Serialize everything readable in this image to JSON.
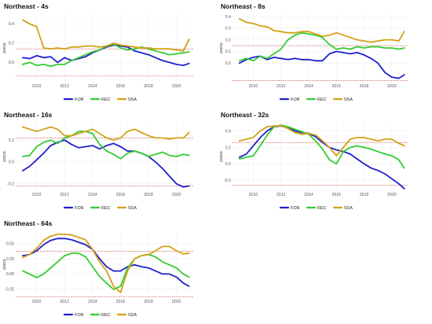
{
  "chart_data": [
    {
      "type": "line",
      "title": "Northeast - 4s",
      "ylabel": "ρocca",
      "xlim": [
        2008.5,
        2021.2
      ],
      "ylim": [
        -0.2,
        0.5
      ],
      "xticks": [
        2010,
        2012,
        2014,
        2016,
        2018,
        2020
      ],
      "yticks": [
        0.0,
        0.2,
        0.4
      ],
      "ytick_labels": [
        "0.0",
        "0.2",
        "0.4"
      ],
      "ref_lines": [
        0.14,
        -0.14
      ],
      "legend_position": "bottom",
      "series": [
        {
          "name": "FOR",
          "color": "#1f1fcf",
          "x": [
            2009,
            2009.5,
            2010,
            2010.5,
            2011,
            2011.5,
            2012,
            2012.5,
            2013,
            2013.5,
            2014,
            2014.5,
            2015,
            2015.5,
            2016,
            2016.5,
            2017,
            2017.5,
            2018,
            2018.5,
            2019,
            2019.5,
            2020,
            2020.5,
            2020.9
          ],
          "values": [
            0.05,
            0.04,
            0.07,
            0.05,
            0.06,
            0.0,
            0.05,
            0.02,
            0.04,
            0.06,
            0.1,
            0.13,
            0.16,
            0.18,
            0.17,
            0.16,
            0.12,
            0.1,
            0.08,
            0.05,
            0.02,
            0.0,
            -0.02,
            -0.03,
            -0.01
          ]
        },
        {
          "name": "REC",
          "color": "#33cc33",
          "x": [
            2009,
            2009.5,
            2010,
            2010.5,
            2011,
            2011.5,
            2012,
            2012.5,
            2013,
            2013.5,
            2014,
            2014.5,
            2015,
            2015.5,
            2016,
            2016.5,
            2017,
            2017.5,
            2018,
            2018.5,
            2019,
            2019.5,
            2020,
            2020.5,
            2020.9
          ],
          "values": [
            -0.02,
            0.0,
            -0.03,
            -0.02,
            -0.04,
            -0.02,
            -0.02,
            0.02,
            0.05,
            0.08,
            0.11,
            0.13,
            0.17,
            0.19,
            0.15,
            0.13,
            0.14,
            0.16,
            0.14,
            0.12,
            0.1,
            0.08,
            0.09,
            0.1,
            0.11
          ]
        },
        {
          "name": "SSA",
          "color": "#d4a017",
          "x": [
            2009,
            2009.5,
            2010,
            2010.5,
            2011,
            2011.5,
            2012,
            2012.5,
            2013,
            2013.5,
            2014,
            2014.5,
            2015,
            2015.5,
            2016,
            2016.5,
            2017,
            2017.5,
            2018,
            2018.5,
            2019,
            2019.5,
            2020,
            2020.5,
            2020.9
          ],
          "values": [
            0.44,
            0.4,
            0.37,
            0.15,
            0.14,
            0.15,
            0.14,
            0.16,
            0.16,
            0.17,
            0.17,
            0.16,
            0.17,
            0.2,
            0.18,
            0.17,
            0.16,
            0.15,
            0.15,
            0.14,
            0.14,
            0.14,
            0.13,
            0.12,
            0.24
          ]
        }
      ]
    },
    {
      "type": "line",
      "title": "Northeast - 8s",
      "ylabel": "ρocca",
      "xlim": [
        2008.5,
        2021.2
      ],
      "ylim": [
        -0.16,
        0.42
      ],
      "xticks": [
        2010,
        2012,
        2014,
        2016,
        2018,
        2020
      ],
      "yticks": [
        0.0,
        0.1,
        0.2,
        0.3,
        0.4
      ],
      "ytick_labels": [
        "0.0",
        "0.1",
        "0.2",
        "0.3",
        "0.4"
      ],
      "ref_lines": [
        0.15,
        -0.15
      ],
      "legend_position": "bottom",
      "series": [
        {
          "name": "FOR",
          "color": "#1f1fcf",
          "x": [
            2009,
            2009.5,
            2010,
            2010.5,
            2011,
            2011.5,
            2012,
            2012.5,
            2013,
            2013.5,
            2014,
            2014.5,
            2015,
            2015.5,
            2016,
            2016.5,
            2017,
            2017.5,
            2018,
            2018.5,
            2019,
            2019.5,
            2020,
            2020.5,
            2020.9
          ],
          "values": [
            0.0,
            0.03,
            0.05,
            0.06,
            0.03,
            0.05,
            0.04,
            0.03,
            0.04,
            0.03,
            0.03,
            0.02,
            0.02,
            0.08,
            0.1,
            0.09,
            0.08,
            0.09,
            0.07,
            0.04,
            0.0,
            -0.08,
            -0.12,
            -0.13,
            -0.1
          ]
        },
        {
          "name": "REC",
          "color": "#33cc33",
          "x": [
            2009,
            2009.5,
            2010,
            2010.5,
            2011,
            2011.5,
            2012,
            2012.5,
            2013,
            2013.5,
            2014,
            2014.5,
            2015,
            2015.5,
            2016,
            2016.5,
            2017,
            2017.5,
            2018,
            2018.5,
            2019,
            2019.5,
            2020,
            2020.5,
            2020.9
          ],
          "values": [
            0.02,
            0.04,
            0.02,
            0.06,
            0.04,
            0.08,
            0.12,
            0.2,
            0.24,
            0.26,
            0.25,
            0.24,
            0.22,
            0.16,
            0.12,
            0.13,
            0.12,
            0.14,
            0.13,
            0.14,
            0.14,
            0.13,
            0.13,
            0.12,
            0.13
          ]
        },
        {
          "name": "SSA",
          "color": "#d4a017",
          "x": [
            2009,
            2009.5,
            2010,
            2010.5,
            2011,
            2011.5,
            2012,
            2012.5,
            2013,
            2013.5,
            2014,
            2014.5,
            2015,
            2015.5,
            2016,
            2016.5,
            2017,
            2017.5,
            2018,
            2018.5,
            2019,
            2019.5,
            2020,
            2020.5,
            2020.9
          ],
          "values": [
            0.38,
            0.35,
            0.34,
            0.32,
            0.31,
            0.28,
            0.27,
            0.26,
            0.26,
            0.27,
            0.27,
            0.25,
            0.23,
            0.24,
            0.26,
            0.24,
            0.22,
            0.2,
            0.19,
            0.18,
            0.19,
            0.2,
            0.2,
            0.19,
            0.27
          ]
        }
      ]
    },
    {
      "type": "line",
      "title": "Northeast - 16s",
      "ylabel": "ρocca",
      "xlim": [
        2008.5,
        2021.2
      ],
      "ylim": [
        -0.26,
        0.36
      ],
      "xticks": [
        2010,
        2012,
        2014,
        2016,
        2018,
        2020
      ],
      "yticks": [
        -0.2,
        0.0,
        0.2
      ],
      "ytick_labels": [
        "-0.2",
        "0.0",
        "0.2"
      ],
      "ref_lines": [
        0.22,
        -0.22
      ],
      "legend_position": "bottom",
      "series": [
        {
          "name": "FOR",
          "color": "#1f1fcf",
          "x": [
            2009,
            2009.5,
            2010,
            2010.5,
            2011,
            2011.5,
            2012,
            2012.5,
            2013,
            2013.5,
            2014,
            2014.5,
            2015,
            2015.5,
            2016,
            2016.5,
            2017,
            2017.5,
            2018,
            2018.5,
            2019,
            2019.5,
            2020,
            2020.5,
            2020.9
          ],
          "values": [
            -0.08,
            -0.04,
            0.02,
            0.08,
            0.15,
            0.18,
            0.2,
            0.16,
            0.13,
            0.14,
            0.15,
            0.12,
            0.15,
            0.17,
            0.14,
            0.1,
            0.1,
            0.08,
            0.05,
            0.0,
            -0.06,
            -0.13,
            -0.2,
            -0.23,
            -0.22
          ]
        },
        {
          "name": "REC",
          "color": "#33cc33",
          "x": [
            2009,
            2009.5,
            2010,
            2010.5,
            2011,
            2011.5,
            2012,
            2012.5,
            2013,
            2013.5,
            2014,
            2014.5,
            2015,
            2015.5,
            2016,
            2016.5,
            2017,
            2017.5,
            2018,
            2018.5,
            2019,
            2019.5,
            2020,
            2020.5,
            2020.9
          ],
          "values": [
            0.05,
            0.06,
            0.14,
            0.18,
            0.2,
            0.17,
            0.22,
            0.24,
            0.28,
            0.28,
            0.26,
            0.16,
            0.1,
            0.07,
            0.03,
            0.08,
            0.1,
            0.08,
            0.05,
            0.07,
            0.09,
            0.06,
            0.05,
            0.07,
            0.06
          ]
        },
        {
          "name": "SSA",
          "color": "#d4a017",
          "x": [
            2009,
            2009.5,
            2010,
            2010.5,
            2011,
            2011.5,
            2012,
            2012.5,
            2013,
            2013.5,
            2014,
            2014.5,
            2015,
            2015.5,
            2016,
            2016.5,
            2017,
            2017.5,
            2018,
            2018.5,
            2019,
            2019.5,
            2020,
            2020.5,
            2020.9
          ],
          "values": [
            0.32,
            0.3,
            0.28,
            0.3,
            0.32,
            0.3,
            0.24,
            0.24,
            0.26,
            0.28,
            0.3,
            0.26,
            0.22,
            0.2,
            0.22,
            0.28,
            0.3,
            0.27,
            0.24,
            0.22,
            0.22,
            0.21,
            0.22,
            0.22,
            0.27
          ]
        }
      ]
    },
    {
      "type": "line",
      "title": "Northeast - 32s",
      "ylabel": "ρocca",
      "xlim": [
        2008.5,
        2021.2
      ],
      "ylim": [
        -0.32,
        0.5
      ],
      "xticks": [
        2010,
        2012,
        2014,
        2016,
        2018,
        2020
      ],
      "yticks": [
        -0.2,
        0.0,
        0.2,
        0.4
      ],
      "ytick_labels": [
        "-0.2",
        "0.0",
        "0.2",
        "0.4"
      ],
      "ref_lines": [
        0.26,
        -0.26
      ],
      "legend_position": "bottom",
      "series": [
        {
          "name": "FOR",
          "color": "#1f1fcf",
          "x": [
            2009,
            2009.5,
            2010,
            2010.5,
            2011,
            2011.5,
            2012,
            2012.5,
            2013,
            2013.5,
            2014,
            2014.5,
            2015,
            2015.5,
            2016,
            2016.5,
            2017,
            2017.5,
            2018,
            2018.5,
            2019,
            2019.5,
            2020,
            2020.5,
            2020.9
          ],
          "values": [
            0.08,
            0.12,
            0.22,
            0.32,
            0.4,
            0.45,
            0.46,
            0.44,
            0.4,
            0.38,
            0.37,
            0.33,
            0.26,
            0.2,
            0.17,
            0.15,
            0.12,
            0.06,
            0.0,
            -0.05,
            -0.08,
            -0.12,
            -0.18,
            -0.24,
            -0.3
          ]
        },
        {
          "name": "REC",
          "color": "#33cc33",
          "x": [
            2009,
            2009.5,
            2010,
            2010.5,
            2011,
            2011.5,
            2012,
            2012.5,
            2013,
            2013.5,
            2014,
            2014.5,
            2015,
            2015.5,
            2016,
            2016.5,
            2017,
            2017.5,
            2018,
            2018.5,
            2019,
            2019.5,
            2020,
            2020.5,
            2020.9
          ],
          "values": [
            0.06,
            0.08,
            0.1,
            0.22,
            0.35,
            0.45,
            0.47,
            0.45,
            0.42,
            0.39,
            0.36,
            0.28,
            0.18,
            0.05,
            0.0,
            0.15,
            0.2,
            0.22,
            0.2,
            0.18,
            0.15,
            0.12,
            0.1,
            0.05,
            -0.05
          ]
        },
        {
          "name": "SSA",
          "color": "#d4a017",
          "x": [
            2009,
            2009.5,
            2010,
            2010.5,
            2011,
            2011.5,
            2012,
            2012.5,
            2013,
            2013.5,
            2014,
            2014.5,
            2015,
            2015.5,
            2016,
            2016.5,
            2017,
            2017.5,
            2018,
            2018.5,
            2019,
            2019.5,
            2020,
            2020.5,
            2020.9
          ],
          "values": [
            0.28,
            0.3,
            0.32,
            0.4,
            0.45,
            0.46,
            0.46,
            0.43,
            0.38,
            0.36,
            0.37,
            0.35,
            0.28,
            0.2,
            0.1,
            0.2,
            0.3,
            0.32,
            0.32,
            0.3,
            0.28,
            0.3,
            0.3,
            0.25,
            0.22
          ]
        }
      ]
    },
    {
      "type": "line",
      "title": "Northeast - 64s",
      "ylabel": "ρocca",
      "xlim": [
        2008.5,
        2021.2
      ],
      "ylim": [
        -0.38,
        0.7
      ],
      "xticks": [
        2010,
        2012,
        2014,
        2016,
        2018,
        2020
      ],
      "yticks": [
        -0.25,
        0.0,
        0.25,
        0.5
      ],
      "ytick_labels": [
        "-0.25",
        "0.00",
        "0.25",
        "0.50"
      ],
      "ref_lines": [
        0.37,
        -0.37
      ],
      "legend_position": "bottom",
      "series": [
        {
          "name": "FOR",
          "color": "#1f1fcf",
          "x": [
            2009,
            2009.5,
            2010,
            2010.5,
            2011,
            2011.5,
            2012,
            2012.5,
            2013,
            2013.5,
            2014,
            2014.5,
            2015,
            2015.5,
            2016,
            2016.5,
            2017,
            2017.5,
            2018,
            2018.5,
            2019,
            2019.5,
            2020,
            2020.5,
            2020.9
          ],
          "values": [
            0.3,
            0.32,
            0.38,
            0.48,
            0.55,
            0.58,
            0.58,
            0.56,
            0.52,
            0.48,
            0.4,
            0.25,
            0.12,
            0.05,
            0.05,
            0.12,
            0.15,
            0.12,
            0.1,
            0.05,
            0.0,
            0.0,
            -0.05,
            -0.15,
            -0.2
          ]
        },
        {
          "name": "REC",
          "color": "#33cc33",
          "x": [
            2009,
            2009.5,
            2010,
            2010.5,
            2011,
            2011.5,
            2012,
            2012.5,
            2013,
            2013.5,
            2014,
            2014.5,
            2015,
            2015.5,
            2016,
            2016.5,
            2017,
            2017.5,
            2018,
            2018.5,
            2019,
            2019.5,
            2020,
            2020.5,
            2020.9
          ],
          "values": [
            0.05,
            0.0,
            -0.06,
            0.0,
            0.1,
            0.2,
            0.3,
            0.34,
            0.34,
            0.28,
            0.12,
            -0.04,
            -0.15,
            -0.25,
            -0.2,
            0.1,
            0.25,
            0.3,
            0.32,
            0.28,
            0.2,
            0.15,
            0.1,
            0.0,
            -0.05
          ]
        },
        {
          "name": "SSA",
          "color": "#d4a017",
          "x": [
            2009,
            2009.5,
            2010,
            2010.5,
            2011,
            2011.5,
            2012,
            2012.5,
            2013,
            2013.5,
            2014,
            2014.5,
            2015,
            2015.5,
            2016,
            2016.5,
            2017,
            2017.5,
            2018,
            2018.5,
            2019,
            2019.5,
            2020,
            2020.5,
            2020.9
          ],
          "values": [
            0.27,
            0.32,
            0.42,
            0.55,
            0.62,
            0.65,
            0.65,
            0.64,
            0.6,
            0.56,
            0.4,
            0.2,
            0.05,
            -0.2,
            -0.3,
            0.05,
            0.25,
            0.3,
            0.32,
            0.38,
            0.45,
            0.45,
            0.38,
            0.33,
            0.34
          ]
        }
      ]
    }
  ]
}
